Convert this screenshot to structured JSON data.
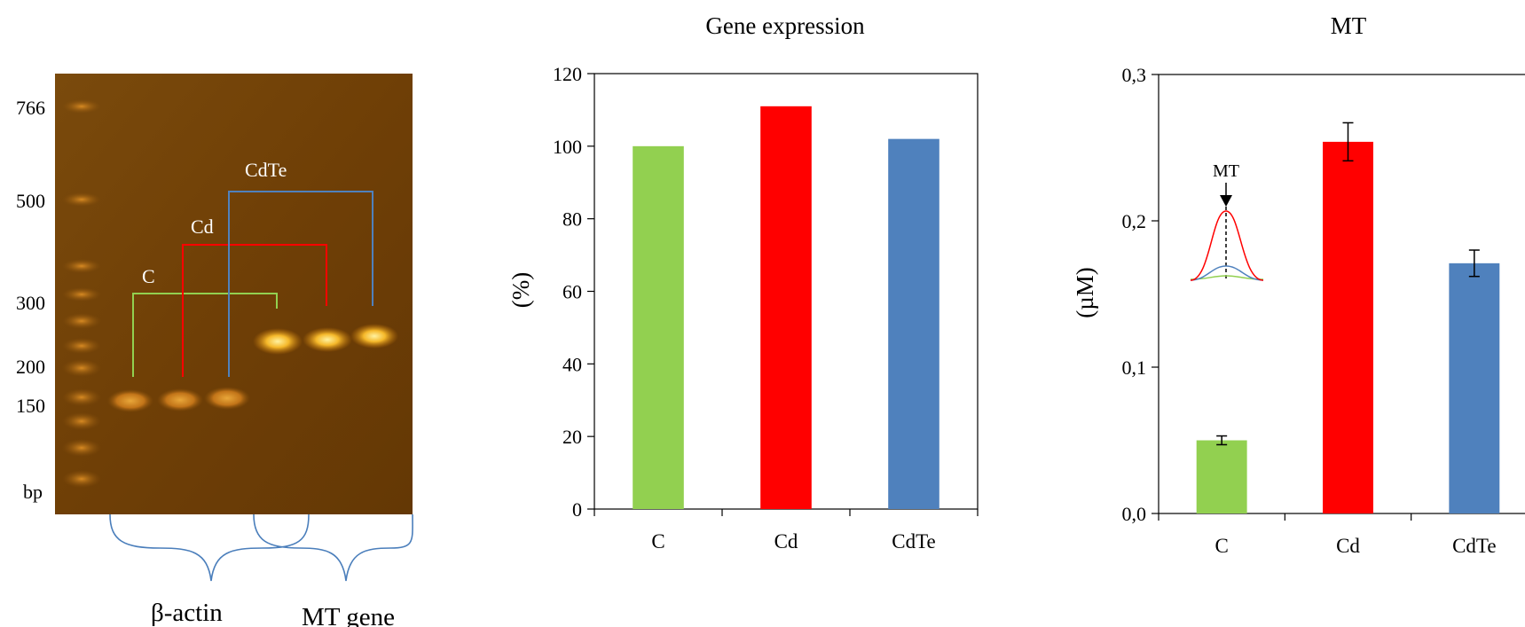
{
  "gel": {
    "ladder_labels": [
      "766",
      "500",
      "300",
      "200",
      "150",
      "bp"
    ],
    "group_labels": [
      "C",
      "Cd",
      "CdTe"
    ],
    "section_labels": [
      "β-actin",
      "MT gene"
    ],
    "colors": {
      "c": "#92d050",
      "cd": "#ff0000",
      "cdte": "#4f81bd"
    }
  },
  "chart_data": [
    {
      "type": "bar",
      "title": "Gene expression",
      "xlabel": "",
      "ylabel": "(%)",
      "categories": [
        "C",
        "Cd",
        "CdTe"
      ],
      "values": [
        100,
        111,
        102
      ],
      "colors": [
        "#92d050",
        "#ff0000",
        "#4f81bd"
      ],
      "ylim": [
        0,
        120
      ],
      "yticks": [
        "0",
        "20",
        "40",
        "60",
        "80",
        "100",
        "120"
      ],
      "grid": false
    },
    {
      "type": "bar",
      "title": "MT",
      "xlabel": "",
      "ylabel": "(µM)",
      "categories": [
        "C",
        "Cd",
        "CdTe"
      ],
      "values": [
        0.05,
        0.254,
        0.171
      ],
      "errors": [
        0.003,
        0.013,
        0.009
      ],
      "colors": [
        "#92d050",
        "#ff0000",
        "#4f81bd"
      ],
      "ylim": [
        0,
        0.3
      ],
      "yticks": [
        "0,0",
        "0,1",
        "0,2",
        "0,3"
      ],
      "grid": false,
      "inset_label": "MT"
    }
  ]
}
